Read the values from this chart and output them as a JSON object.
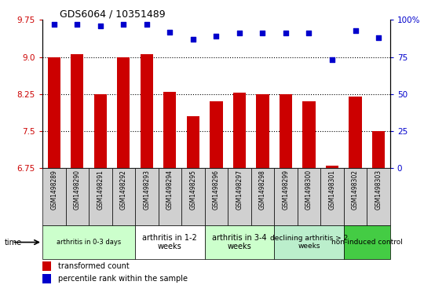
{
  "title": "GDS6064 / 10351489",
  "samples": [
    "GSM1498289",
    "GSM1498290",
    "GSM1498291",
    "GSM1498292",
    "GSM1498293",
    "GSM1498294",
    "GSM1498295",
    "GSM1498296",
    "GSM1498297",
    "GSM1498298",
    "GSM1498299",
    "GSM1498300",
    "GSM1498301",
    "GSM1498302",
    "GSM1498303"
  ],
  "bar_values": [
    9.0,
    9.05,
    8.25,
    9.0,
    9.05,
    8.3,
    7.8,
    8.1,
    8.28,
    8.25,
    8.25,
    8.1,
    6.8,
    8.2,
    7.5
  ],
  "dot_values": [
    97,
    97,
    96,
    97,
    97,
    92,
    87,
    89,
    91,
    91,
    91,
    91,
    73,
    93,
    88
  ],
  "ylim_left": [
    6.75,
    9.75
  ],
  "ylim_right": [
    0,
    100
  ],
  "yticks_left": [
    6.75,
    7.5,
    8.25,
    9.0,
    9.75
  ],
  "yticks_right": [
    0,
    25,
    50,
    75,
    100
  ],
  "bar_color": "#cc0000",
  "dot_color": "#0000cc",
  "background_color": "#ffffff",
  "groups": [
    {
      "label": "arthritis in 0-3 days",
      "count": 4,
      "color": "#ccffcc",
      "fontsize": 6
    },
    {
      "label": "arthritis in 1-2\nweeks",
      "count": 3,
      "color": "#ffffff",
      "fontsize": 7
    },
    {
      "label": "arthritis in 3-4\nweeks",
      "count": 3,
      "color": "#ccffcc",
      "fontsize": 7
    },
    {
      "label": "declining arthritis > 2\nweeks",
      "count": 3,
      "color": "#bbeecc",
      "fontsize": 6.5
    },
    {
      "label": "non-induced control",
      "count": 2,
      "color": "#44cc44",
      "fontsize": 6.5
    }
  ],
  "legend_bar_label": "transformed count",
  "legend_dot_label": "percentile rank within the sample",
  "bar_color_label": "#cc0000",
  "dot_color_label": "#0000cc",
  "bar_width": 0.55
}
